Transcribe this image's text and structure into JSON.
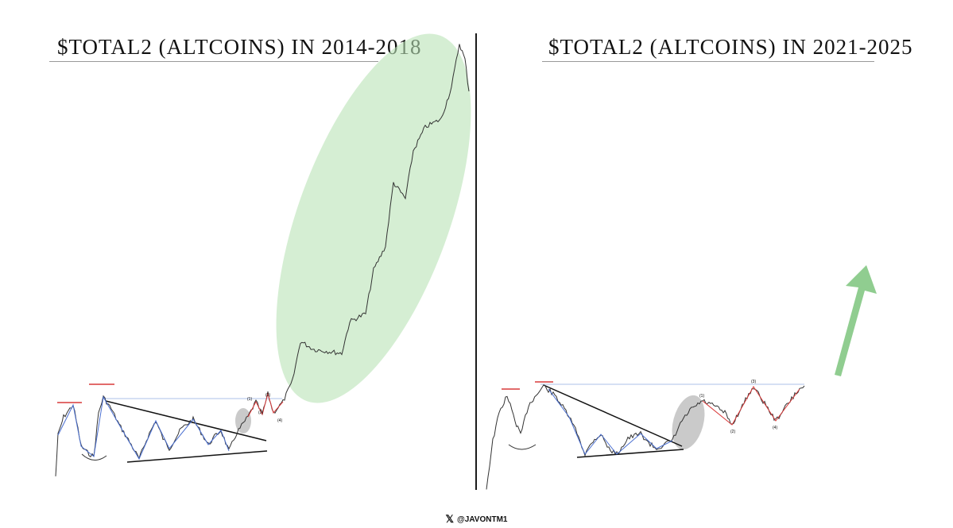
{
  "left_panel": {
    "title": "$TOTAL2 (ALTCOINS) IN 2014-2018"
  },
  "right_panel": {
    "title": "$TOTAL2 (ALTCOINS) IN 2021-2025"
  },
  "footer": {
    "handle": "@JAVONTM1",
    "icon": "x-logo-icon"
  },
  "colors": {
    "price": "#333333",
    "wave_blue": "#4a6fd1",
    "wave_red": "#d93a3a",
    "resistance": "#c9d6f0",
    "highlight_green": "#b9e3b5",
    "highlight_gray": "#9e9e9e",
    "arrow_green": "#7cc47c"
  },
  "chart_data": [
    {
      "type": "line",
      "title": "$TOTAL2 (ALTCOINS) IN 2014-2018",
      "annotations": [
        "(1)",
        "(2)",
        "(3)",
        "(4)"
      ],
      "shapes": [
        "descending-triangle",
        "breakout-circle",
        "green-ellipse"
      ]
    },
    {
      "type": "line",
      "title": "$TOTAL2 (ALTCOINS) IN 2021-2025",
      "annotations": [
        "(1)",
        "(2)",
        "(3)",
        "(4)"
      ],
      "shapes": [
        "descending-triangle",
        "breakout-circle",
        "upward-arrow"
      ]
    }
  ]
}
